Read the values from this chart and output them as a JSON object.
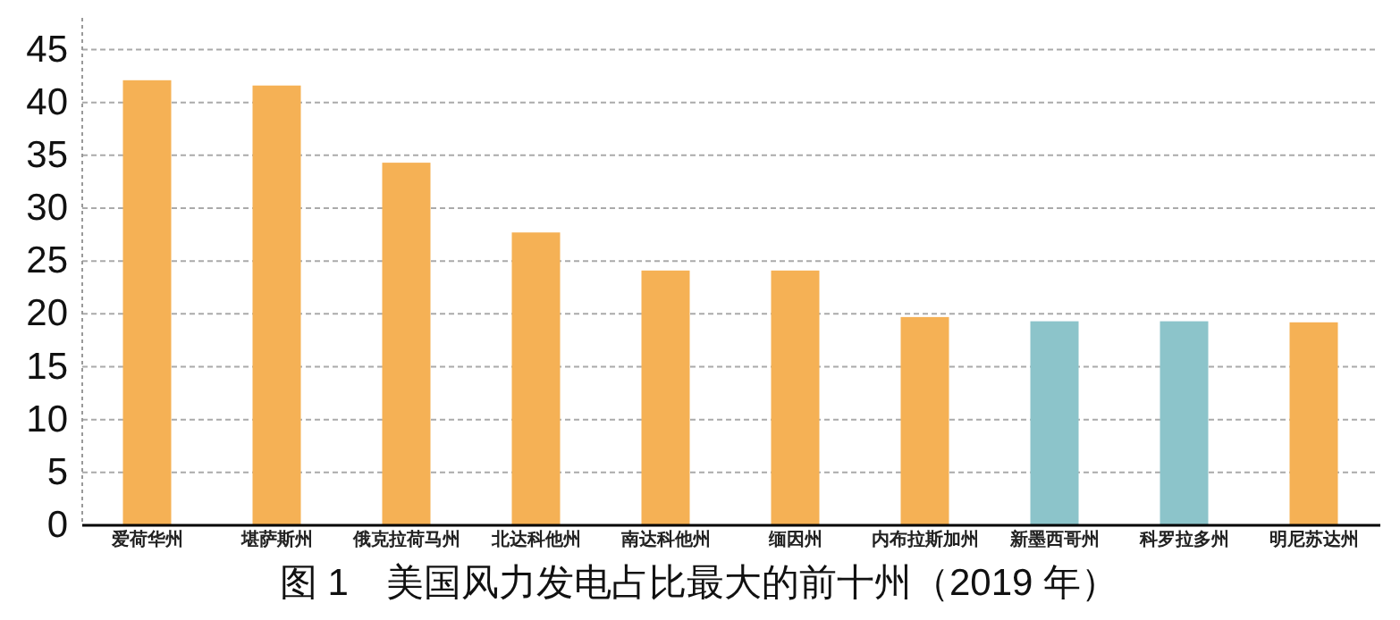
{
  "chart_data": {
    "type": "bar",
    "title": "图 1　美国风力发电占比最大的前十州（2019 年）",
    "categories": [
      "爱荷华州",
      "堪萨斯州",
      "俄克拉荷马州",
      "北达科他州",
      "南达科他州",
      "缅因州",
      "内布拉斯加州",
      "新墨西哥州",
      "科罗拉多州",
      "明尼苏达州"
    ],
    "values": [
      42.1,
      41.6,
      34.3,
      27.7,
      24.1,
      24.1,
      19.7,
      19.3,
      19.3,
      19.2
    ],
    "colors": [
      "#f5b155",
      "#f5b155",
      "#f5b155",
      "#f5b155",
      "#f5b155",
      "#f5b155",
      "#f5b155",
      "#8cc4ca",
      "#8cc4ca",
      "#f5b155"
    ],
    "ylim": [
      0,
      48
    ],
    "yticks": [
      0,
      5,
      10,
      15,
      20,
      25,
      30,
      35,
      40,
      45
    ],
    "grid": "y"
  }
}
